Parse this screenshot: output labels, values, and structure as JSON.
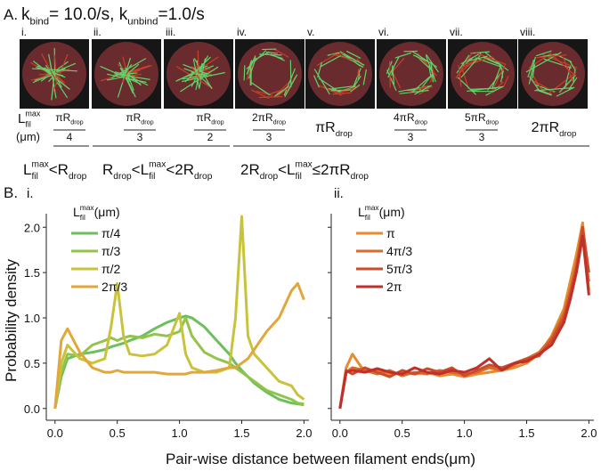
{
  "panel_a": {
    "label": "A.",
    "title": [
      {
        "t": "k"
      },
      {
        "sub": "bind"
      },
      {
        "t": "= 10.0/s, k"
      },
      {
        "sub": "unbind"
      },
      {
        "t": "=1.0/s"
      }
    ],
    "columns": [
      "i.",
      "ii.",
      "iii.",
      "iv.",
      "v.",
      "vi.",
      "vii.",
      "viii."
    ],
    "row_label": [
      {
        "t": "L"
      },
      {
        "sup": "max",
        "sub": "fil"
      }
    ],
    "row_unit": "(μm)",
    "lengths": [
      {
        "num": [
          {
            "t": "πR"
          },
          {
            "sub": "drop"
          }
        ],
        "den": "4"
      },
      {
        "num": [
          {
            "t": "πR"
          },
          {
            "sub": "drop"
          }
        ],
        "den": "3"
      },
      {
        "num": [
          {
            "t": "πR"
          },
          {
            "sub": "drop"
          }
        ],
        "den": "2"
      },
      {
        "num": [
          {
            "t": "2πR"
          },
          {
            "sub": "drop"
          }
        ],
        "den": "3"
      },
      {
        "num": [
          {
            "t": "πR"
          },
          {
            "sub": "drop"
          }
        ]
      },
      {
        "num": [
          {
            "t": "4πR"
          },
          {
            "sub": "drop"
          }
        ],
        "den": "3"
      },
      {
        "num": [
          {
            "t": "5πR"
          },
          {
            "sub": "drop"
          }
        ],
        "den": "3"
      },
      {
        "num": [
          {
            "t": "2πR"
          },
          {
            "sub": "drop"
          }
        ]
      }
    ],
    "regimes": [
      [
        {
          "t": "L"
        },
        {
          "sup": "max",
          "sub": "fil"
        },
        {
          "t": "<R"
        },
        {
          "sub": "drop"
        }
      ],
      [
        {
          "t": "R"
        },
        {
          "sub": "drop"
        },
        {
          "t": "<L"
        },
        {
          "sup": "max",
          "sub": "fil"
        },
        {
          "t": "<2R"
        },
        {
          "sub": "drop"
        }
      ],
      [
        {
          "t": "2R"
        },
        {
          "sub": "drop"
        },
        {
          "t": "<L"
        },
        {
          "sup": "max",
          "sub": "fil"
        },
        {
          "t": "≤2πR"
        },
        {
          "sub": "drop"
        }
      ]
    ]
  },
  "panel_b": {
    "label": "B.",
    "xlabel": "Pair-wise distance between filament ends(μm)",
    "ylabel": "Probability density"
  },
  "chart_data": [
    {
      "type": "line",
      "label": "i.",
      "legend_title": [
        {
          "t": "L"
        },
        {
          "sup": "max",
          "sub": "fil"
        },
        {
          "t": "(μm)"
        }
      ],
      "x": [
        0,
        0.05,
        0.1,
        0.2,
        0.3,
        0.4,
        0.45,
        0.5,
        0.55,
        0.6,
        0.7,
        0.8,
        0.9,
        1.0,
        1.05,
        1.1,
        1.2,
        1.3,
        1.4,
        1.45,
        1.5,
        1.55,
        1.6,
        1.7,
        1.8,
        1.9,
        1.95,
        2.0
      ],
      "series": [
        {
          "name": "π/4",
          "color": "#6cbf5c",
          "values": [
            0,
            0.35,
            0.55,
            0.6,
            0.62,
            0.65,
            0.68,
            0.7,
            0.72,
            0.75,
            0.8,
            0.88,
            0.95,
            1.0,
            1.02,
            1.0,
            0.9,
            0.75,
            0.6,
            0.5,
            0.42,
            0.35,
            0.28,
            0.18,
            0.1,
            0.06,
            0.05,
            0.04
          ]
        },
        {
          "name": "π/3",
          "color": "#93c44a",
          "values": [
            0,
            0.4,
            0.6,
            0.58,
            0.7,
            0.75,
            0.78,
            0.75,
            0.78,
            0.8,
            0.78,
            0.82,
            0.8,
            0.85,
            1.0,
            0.8,
            0.62,
            0.55,
            0.5,
            0.45,
            0.4,
            0.35,
            0.3,
            0.2,
            0.15,
            0.1,
            0.06,
            0.05
          ]
        },
        {
          "name": "π/2",
          "color": "#c9c33c",
          "values": [
            0,
            0.5,
            0.7,
            0.55,
            0.5,
            0.55,
            0.9,
            1.38,
            0.8,
            0.6,
            0.58,
            0.6,
            0.7,
            1.05,
            0.6,
            0.45,
            0.4,
            0.4,
            0.45,
            1.0,
            2.12,
            0.8,
            0.6,
            0.45,
            0.3,
            0.25,
            0.15,
            0.1
          ]
        },
        {
          "name": "2π/3",
          "color": "#e2a73a",
          "values": [
            0,
            0.75,
            0.88,
            0.62,
            0.45,
            0.4,
            0.4,
            0.42,
            0.4,
            0.4,
            0.4,
            0.4,
            0.38,
            0.38,
            0.38,
            0.4,
            0.4,
            0.42,
            0.45,
            0.45,
            0.5,
            0.55,
            0.65,
            0.85,
            1.0,
            1.3,
            1.38,
            1.2
          ]
        }
      ],
      "xlim": [
        -0.07,
        2.04
      ],
      "ylim": [
        -0.13,
        2.15
      ],
      "xticks": [
        {
          "value": 0,
          "label": "0.0"
        },
        {
          "value": 0.5,
          "label": "0.5"
        },
        {
          "value": 1,
          "label": "1.0"
        },
        {
          "value": 1.5,
          "label": "1.5"
        },
        {
          "value": 2,
          "label": "2.0"
        }
      ],
      "yticks": [
        {
          "value": 0,
          "label": "0.0"
        },
        {
          "value": 0.5,
          "label": "0.5"
        },
        {
          "value": 1,
          "label": "1.0"
        },
        {
          "value": 1.5,
          "label": "1.5"
        },
        {
          "value": 2,
          "label": "2.0"
        }
      ]
    },
    {
      "type": "line",
      "label": "ii.",
      "legend_title": [
        {
          "t": "L"
        },
        {
          "sup": "max",
          "sub": "fil"
        },
        {
          "t": "(μm)"
        }
      ],
      "x": [
        0,
        0.05,
        0.1,
        0.2,
        0.3,
        0.4,
        0.5,
        0.6,
        0.7,
        0.8,
        0.9,
        1.0,
        1.1,
        1.2,
        1.3,
        1.4,
        1.5,
        1.6,
        1.7,
        1.8,
        1.85,
        1.9,
        1.95,
        2.0
      ],
      "series": [
        {
          "name": "π",
          "color": "#e88a2e",
          "values": [
            0,
            0.45,
            0.6,
            0.4,
            0.42,
            0.38,
            0.4,
            0.38,
            0.4,
            0.36,
            0.38,
            0.35,
            0.38,
            0.4,
            0.42,
            0.45,
            0.5,
            0.6,
            0.8,
            1.1,
            1.4,
            1.7,
            2.05,
            1.3
          ]
        },
        {
          "name": "4π/3",
          "color": "#da6a2b",
          "values": [
            0,
            0.4,
            0.45,
            0.42,
            0.38,
            0.42,
            0.36,
            0.4,
            0.38,
            0.42,
            0.4,
            0.38,
            0.4,
            0.45,
            0.42,
            0.48,
            0.55,
            0.62,
            0.78,
            1.05,
            1.3,
            1.6,
            1.95,
            1.4
          ]
        },
        {
          "name": "5π/3",
          "color": "#cc4c29",
          "values": [
            0,
            0.42,
            0.38,
            0.45,
            0.4,
            0.35,
            0.42,
            0.38,
            0.44,
            0.4,
            0.45,
            0.36,
            0.42,
            0.48,
            0.45,
            0.5,
            0.55,
            0.58,
            0.75,
            1.0,
            1.25,
            1.55,
            2.0,
            1.5
          ]
        },
        {
          "name": "2π",
          "color": "#c0302a",
          "values": [
            0,
            0.4,
            0.42,
            0.4,
            0.44,
            0.4,
            0.38,
            0.45,
            0.4,
            0.38,
            0.42,
            0.4,
            0.45,
            0.55,
            0.42,
            0.5,
            0.52,
            0.6,
            0.7,
            0.95,
            1.2,
            1.5,
            1.9,
            1.25
          ]
        }
      ],
      "xlim": [
        -0.07,
        2.04
      ],
      "ylim": [
        -0.13,
        2.15
      ],
      "xticks": [
        {
          "value": 0,
          "label": "0.0"
        },
        {
          "value": 0.5,
          "label": "0.5"
        },
        {
          "value": 1,
          "label": "1.0"
        },
        {
          "value": 1.5,
          "label": "1.5"
        },
        {
          "value": 2,
          "label": "2.0"
        }
      ],
      "yticks": [
        0,
        0.5,
        1,
        1.5,
        2
      ]
    }
  ]
}
